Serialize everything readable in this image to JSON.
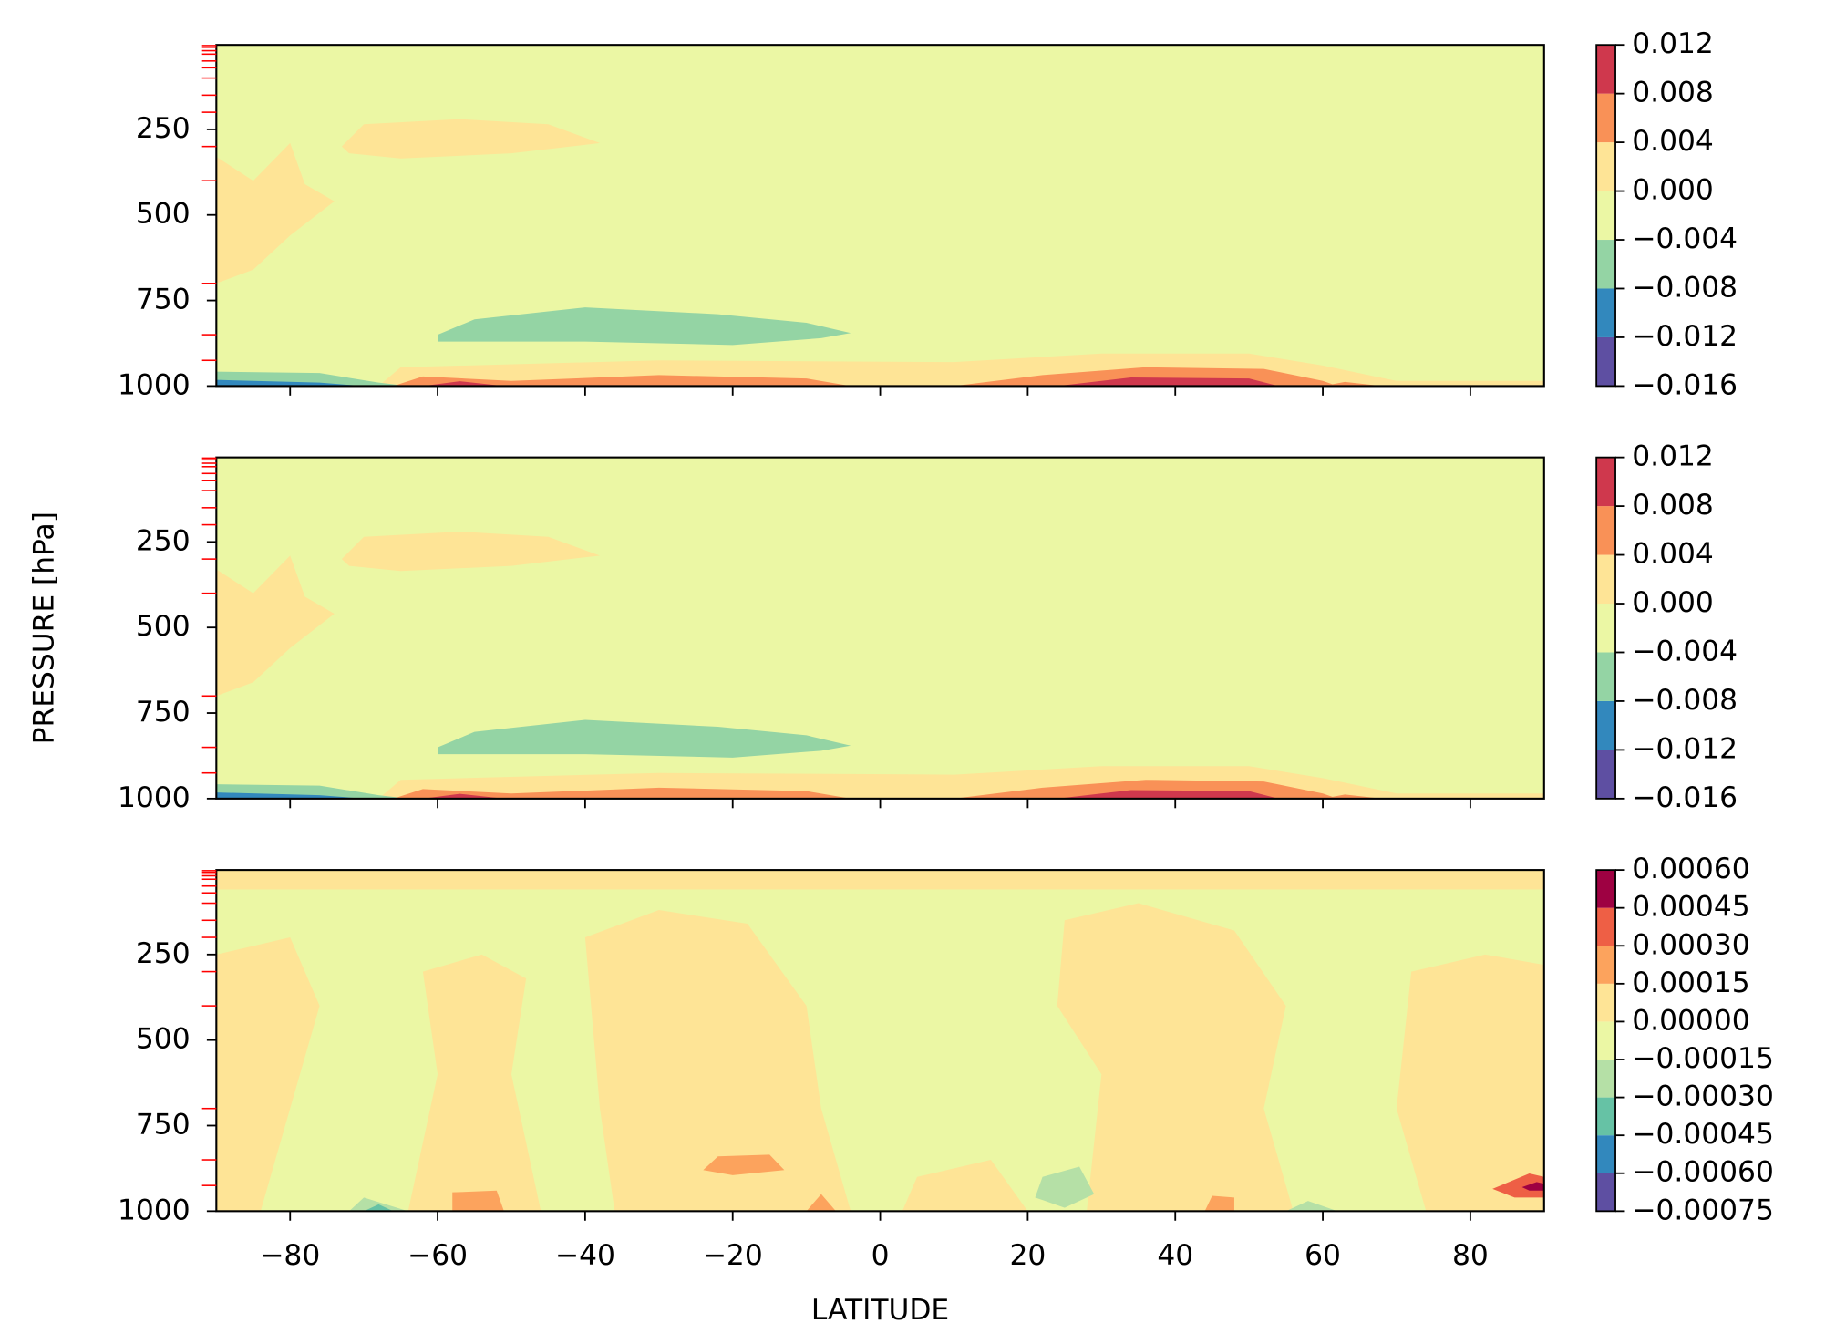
{
  "chart_data": [
    {
      "type": "contour",
      "xlim": [
        -90,
        90
      ],
      "ylim": [
        1000,
        3
      ],
      "xticks": [
        {
          "value": -80,
          "label": "−80"
        },
        {
          "value": -60,
          "label": "−60"
        },
        {
          "value": -40,
          "label": "−40"
        },
        {
          "value": -20,
          "label": "−20"
        },
        0,
        20,
        40,
        60,
        80
      ],
      "yticks": [
        250,
        500,
        750,
        1000
      ],
      "minor_yticks": [
        5,
        10,
        20,
        30,
        50,
        70,
        100,
        150,
        200,
        300,
        400,
        700,
        850,
        925
      ],
      "minor_ytick_color": "#ff0000",
      "cbar_ticks": [
        {
          "value": -0.016,
          "label": "−0.016"
        },
        {
          "value": -0.012,
          "label": "−0.012"
        },
        {
          "value": -0.008,
          "label": "−0.008"
        },
        {
          "value": -0.004,
          "label": "−0.004"
        },
        {
          "value": 0,
          "label": "0.000"
        },
        {
          "value": 0.004,
          "label": "0.004"
        },
        {
          "value": 0.008,
          "label": "0.008"
        },
        {
          "value": 0.012,
          "label": "0.012"
        }
      ],
      "colors": [
        "#5e4fa2",
        "#3288bd",
        "#94d4a4",
        "#ebf7a4",
        "#fee496",
        "#f99157",
        "#cf384d"
      ]
    },
    {
      "type": "contour",
      "xlim": [
        -90,
        90
      ],
      "ylim": [
        1000,
        3
      ],
      "ylabel": "PRESSURE [hPa]",
      "xticks": [
        {
          "value": -80,
          "label": "−80"
        },
        {
          "value": -60,
          "label": "−60"
        },
        {
          "value": -40,
          "label": "−40"
        },
        {
          "value": -20,
          "label": "−20"
        },
        0,
        20,
        40,
        60,
        80
      ],
      "yticks": [
        250,
        500,
        750,
        1000
      ],
      "minor_yticks": [
        5,
        10,
        20,
        30,
        50,
        70,
        100,
        150,
        200,
        300,
        400,
        700,
        850,
        925
      ],
      "minor_ytick_color": "#ff0000",
      "cbar_ticks": [
        {
          "value": -0.016,
          "label": "−0.016"
        },
        {
          "value": -0.012,
          "label": "−0.012"
        },
        {
          "value": -0.008,
          "label": "−0.008"
        },
        {
          "value": -0.004,
          "label": "−0.004"
        },
        {
          "value": 0,
          "label": "0.000"
        },
        {
          "value": 0.004,
          "label": "0.004"
        },
        {
          "value": 0.008,
          "label": "0.008"
        },
        {
          "value": 0.012,
          "label": "0.012"
        }
      ],
      "colors": [
        "#5e4fa2",
        "#3288bd",
        "#94d4a4",
        "#ebf7a4",
        "#fee496",
        "#f99157",
        "#cf384d"
      ]
    },
    {
      "type": "contour",
      "xlim": [
        -90,
        90
      ],
      "ylim": [
        1000,
        3
      ],
      "xlabel": "LATITUDE",
      "xticks": [
        {
          "value": -80,
          "label": "−80"
        },
        {
          "value": -60,
          "label": "−60"
        },
        {
          "value": -40,
          "label": "−40"
        },
        {
          "value": -20,
          "label": "−20"
        },
        0,
        20,
        40,
        60,
        80
      ],
      "yticks": [
        250,
        500,
        750,
        1000
      ],
      "minor_yticks": [
        5,
        10,
        20,
        30,
        50,
        70,
        100,
        150,
        200,
        300,
        400,
        700,
        850,
        925
      ],
      "minor_ytick_color": "#ff0000",
      "cbar_ticks": [
        {
          "value": -0.00075,
          "label": "−0.00075"
        },
        {
          "value": -0.0006,
          "label": "−0.00060"
        },
        {
          "value": -0.00045,
          "label": "−0.00045"
        },
        {
          "value": -0.0003,
          "label": "−0.00030"
        },
        {
          "value": -0.00015,
          "label": "−0.00015"
        },
        {
          "value": 0,
          "label": "0.00000"
        },
        {
          "value": 0.00015,
          "label": "0.00015"
        },
        {
          "value": 0.0003,
          "label": "0.00030"
        },
        {
          "value": 0.00045,
          "label": "0.00045"
        },
        {
          "value": 0.0006,
          "label": "0.00060"
        }
      ],
      "colors": [
        "#5e4fa2",
        "#3288bd",
        "#66c2a5",
        "#b5e0a6",
        "#ebf7a4",
        "#fee496",
        "#fca35d",
        "#ee5f45",
        "#9e0142"
      ]
    }
  ]
}
